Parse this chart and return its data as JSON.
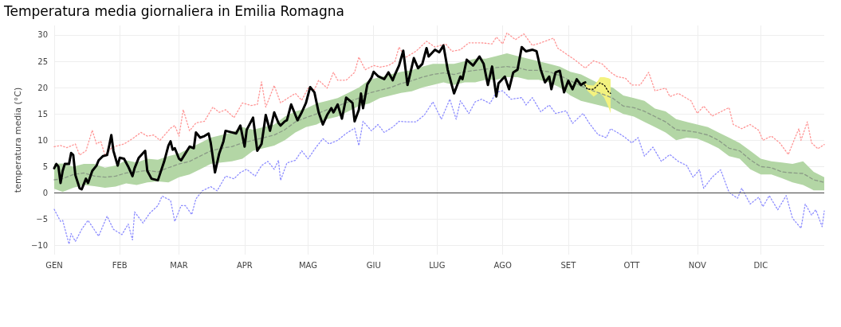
{
  "chart_data": {
    "type": "line",
    "title": "Temperatura media giornaliera in Emilia Romagna",
    "ylabel": "temperatura media (°C)",
    "xlim": [
      "--01-01",
      "--12-31"
    ],
    "ylim": [
      -11.7,
      31.8
    ],
    "xticks": [
      {
        "value": "--01-01",
        "label": "GEN"
      },
      {
        "value": "--02-01",
        "label": "FEB"
      },
      {
        "value": "--03-01",
        "label": "MAR"
      },
      {
        "value": "--04-01",
        "label": "APR"
      },
      {
        "value": "--05-01",
        "label": "MAG"
      },
      {
        "value": "--06-01",
        "label": "GIU"
      },
      {
        "value": "--07-01",
        "label": "LUG"
      },
      {
        "value": "--08-01",
        "label": "AGO"
      },
      {
        "value": "--09-01",
        "label": "SET"
      },
      {
        "value": "--10-01",
        "label": "OTT"
      },
      {
        "value": "--11-01",
        "label": "NOV"
      },
      {
        "value": "--12-01",
        "label": "DIC"
      }
    ],
    "yticks": [
      {
        "value": -10,
        "label": "−10"
      },
      {
        "value": -5,
        "label": "−5"
      },
      0,
      5,
      10,
      15,
      20,
      25,
      30
    ],
    "grid": true,
    "marker": "none",
    "ref_lines": [
      {
        "axis": "y",
        "value": 0,
        "color": "#444444"
      }
    ],
    "series": [
      {
        "color": "#b3d6a5",
        "x": [
          "--01-01",
          "--01-05",
          "--01-10",
          "--01-15",
          "--01-20",
          "--01-25",
          "--01-30",
          "--02-04",
          "--02-09",
          "--02-14",
          "--02-19",
          "--02-24",
          "--03-01",
          "--03-06",
          "--03-11",
          "--03-16",
          "--03-21",
          "--03-26",
          "--03-31",
          "--04-05",
          "--04-10",
          "--04-15",
          "--04-20",
          "--04-25",
          "--04-30",
          "--05-05",
          "--05-10",
          "--05-15",
          "--05-20",
          "--05-25",
          "--05-30",
          "--06-04",
          "--06-09",
          "--06-14",
          "--06-19",
          "--06-24",
          "--06-29",
          "--07-04",
          "--07-09",
          "--07-14",
          "--07-19",
          "--07-24",
          "--07-29",
          "--08-03",
          "--08-08",
          "--08-13",
          "--08-18",
          "--08-23",
          "--08-28",
          "--09-02",
          "--09-07",
          "--09-12",
          "--09-17",
          "--09-22",
          "--09-27",
          "--10-02",
          "--10-07",
          "--10-12",
          "--10-17",
          "--10-22",
          "--10-27",
          "--11-01",
          "--11-06",
          "--11-11",
          "--11-16",
          "--11-21",
          "--11-26",
          "--12-01",
          "--12-06",
          "--12-11",
          "--12-16",
          "--12-21",
          "--12-26",
          "--12-31"
        ],
        "lower": [
          0.8,
          0.2,
          1.0,
          1.5,
          1.3,
          1.0,
          1.2,
          1.8,
          1.5,
          2.0,
          2.2,
          2.0,
          3.0,
          3.5,
          4.5,
          5.5,
          5.8,
          6.0,
          6.5,
          8.0,
          8.5,
          9.0,
          10.0,
          11.5,
          12.5,
          13.0,
          14.0,
          14.5,
          15.5,
          16.5,
          17.0,
          18.0,
          18.5,
          19.0,
          19.3,
          20,
          20.5,
          21,
          20.5,
          21,
          21,
          21.5,
          21.5,
          22,
          22,
          21.5,
          21.5,
          21,
          20,
          18.5,
          17.5,
          17,
          16.5,
          16,
          15,
          14.5,
          13.5,
          12.5,
          11.5,
          10,
          10.5,
          10.3,
          9.5,
          8.5,
          7.0,
          6.5,
          4.5,
          3.5,
          3.5,
          2.8,
          2.0,
          1.5,
          0.5,
          0.5
        ],
        "upper": [
          5.5,
          5.6,
          5.0,
          5.5,
          5.5,
          4.8,
          5.2,
          6.2,
          5.8,
          6.5,
          6.3,
          7.0,
          7.5,
          8.5,
          9.5,
          10.5,
          11.0,
          11.5,
          12.5,
          12.0,
          12.5,
          13.0,
          14.5,
          15.5,
          16.0,
          17.0,
          17.5,
          18.0,
          19.0,
          20.0,
          21.5,
          22.0,
          22.5,
          23.0,
          23.3,
          24,
          24.5,
          24.5,
          24.5,
          25,
          25.5,
          25.5,
          26,
          26.5,
          26,
          25.5,
          25,
          24.5,
          24,
          23,
          22.5,
          21.5,
          20.5,
          20,
          18.5,
          18,
          17.5,
          16,
          15.5,
          14,
          13.5,
          13,
          12.5,
          11.5,
          10.5,
          9.5,
          8.0,
          6.5,
          6.0,
          5.8,
          5.5,
          6,
          4,
          3
        ],
        "values": [
          null,
          null,
          null,
          null,
          null,
          null,
          null,
          null,
          null,
          null,
          null,
          null,
          null,
          null,
          null,
          null,
          null,
          null,
          null,
          null,
          null,
          null,
          null,
          null,
          null,
          null,
          null,
          null,
          null,
          null,
          null,
          null,
          null,
          null,
          null,
          null,
          null,
          null,
          null,
          null,
          null,
          null,
          null,
          null,
          null,
          null,
          null,
          null,
          null,
          null,
          null,
          null,
          null,
          null,
          null,
          null,
          null,
          null,
          null,
          null,
          null,
          null,
          null,
          null,
          null,
          null,
          null,
          null,
          null,
          null,
          null,
          null,
          null,
          null
        ]
      },
      {
        "color": "#8a9a86",
        "line_style": "dashed",
        "x": [
          "--01-01",
          "--01-05",
          "--01-10",
          "--01-15",
          "--01-20",
          "--01-25",
          "--01-30",
          "--02-04",
          "--02-09",
          "--02-14",
          "--02-19",
          "--02-24",
          "--03-01",
          "--03-06",
          "--03-11",
          "--03-16",
          "--03-21",
          "--03-26",
          "--03-31",
          "--04-05",
          "--04-10",
          "--04-15",
          "--04-20",
          "--04-25",
          "--04-30",
          "--05-05",
          "--05-10",
          "--05-15",
          "--05-20",
          "--05-25",
          "--05-30",
          "--06-04",
          "--06-09",
          "--06-14",
          "--06-19",
          "--06-24",
          "--06-29",
          "--07-04",
          "--07-09",
          "--07-14",
          "--07-19",
          "--07-24",
          "--07-29",
          "--08-03",
          "--08-08",
          "--08-13",
          "--08-18",
          "--08-23",
          "--08-28",
          "--09-02",
          "--09-07",
          "--09-12",
          "--09-17",
          "--09-22",
          "--09-27",
          "--10-02",
          "--10-07",
          "--10-12",
          "--10-17",
          "--10-22",
          "--10-27",
          "--11-01",
          "--11-06",
          "--11-11",
          "--11-16",
          "--11-21",
          "--11-26",
          "--12-01",
          "--12-06",
          "--12-11",
          "--12-16",
          "--12-21",
          "--12-26",
          "--12-31"
        ],
        "values": [
          2.5,
          2.7,
          3.5,
          3.8,
          3.2,
          3.0,
          3.2,
          3.8,
          4.0,
          4.3,
          4.0,
          4.8,
          5.5,
          6.0,
          7.0,
          8.0,
          8.5,
          8.8,
          9.5,
          10.0,
          10.5,
          11.0,
          12.0,
          13.5,
          14.3,
          15.0,
          15.8,
          16.5,
          17.3,
          18.0,
          19.0,
          19.5,
          20.0,
          20.8,
          21.3,
          22,
          22.5,
          22.8,
          22.5,
          23,
          23.3,
          23.5,
          23.8,
          24,
          23.8,
          23.3,
          23.3,
          23,
          22.3,
          21.3,
          20.3,
          19.5,
          18.8,
          18,
          16.5,
          16.2,
          15.5,
          14.5,
          13.5,
          12,
          11.8,
          11.5,
          11.0,
          10,
          8.5,
          8.0,
          6.3,
          5.0,
          4.8,
          4.0,
          3.8,
          3.7,
          2.5,
          2.0
        ]
      },
      {
        "color": "#ff9494",
        "line_style": "dotted",
        "x": [
          "--01-01",
          "--01-04",
          "--01-07",
          "--01-11",
          "--01-13",
          "--01-16",
          "--01-19",
          "--01-21",
          "--01-23",
          "--01-25",
          "--01-28",
          "--01-31",
          "--02-03",
          "--02-07",
          "--02-11",
          "--02-14",
          "--02-17",
          "--02-20",
          "--02-25",
          "--02-27",
          "--03-01",
          "--03-03",
          "--03-06",
          "--03-09",
          "--03-13",
          "--03-17",
          "--03-20",
          "--03-23",
          "--03-27",
          "--03-31",
          "--04-04",
          "--04-07",
          "--04-09",
          "--04-11",
          "--04-15",
          "--04-18",
          "--04-21",
          "--04-25",
          "--04-28",
          "--05-01",
          "--05-04",
          "--05-06",
          "--05-10",
          "--05-13",
          "--05-15",
          "--05-19",
          "--05-23",
          "--05-25",
          "--05-28",
          "--06-01",
          "--06-04",
          "--06-08",
          "--06-11",
          "--06-13",
          "--06-16",
          "--06-21",
          "--06-26",
          "--06-30",
          "--07-05",
          "--07-08",
          "--07-12",
          "--07-16",
          "--07-22",
          "--07-27",
          "--07-29",
          "--08-01",
          "--08-03",
          "--08-07",
          "--08-11",
          "--08-15",
          "--08-19",
          "--08-25",
          "--08-27",
          "--08-31",
          "--09-04",
          "--09-09",
          "--09-13",
          "--09-17",
          "--09-21",
          "--09-24",
          "--09-28",
          "--10-01",
          "--10-05",
          "--10-09",
          "--10-12",
          "--10-17",
          "--10-19",
          "--10-23",
          "--10-29",
          "--11-01",
          "--11-04",
          "--11-08",
          "--11-12",
          "--11-16",
          "--11-18",
          "--11-22",
          "--11-26",
          "--11-30",
          "--12-02",
          "--12-06",
          "--12-10",
          "--12-14",
          "--12-17",
          "--12-19",
          "--12-20",
          "--12-23",
          "--12-25",
          "--12-28",
          "--12-31"
        ],
        "values": [
          8.8,
          9.0,
          8.6,
          9.3,
          7.2,
          8.0,
          11.9,
          9.3,
          9.8,
          7.2,
          8.5,
          9.0,
          9.3,
          10.3,
          11.5,
          10.8,
          11.0,
          10.0,
          12.3,
          12.8,
          10.8,
          15.8,
          11.8,
          13.3,
          13.6,
          16.3,
          15.3,
          15.8,
          14.3,
          17.1,
          16.6,
          16.8,
          21.1,
          16.3,
          20.4,
          17.1,
          17.9,
          18.9,
          17.6,
          19.9,
          19.6,
          21.4,
          19.9,
          22.9,
          21.4,
          21.4,
          22.9,
          25.8,
          23.4,
          24.2,
          23.9,
          24.2,
          24.9,
          27.7,
          25.7,
          26.9,
          28.8,
          27.7,
          28.3,
          26.9,
          27.2,
          28.5,
          28.5,
          28.3,
          29.6,
          28.3,
          30.4,
          29.1,
          30.2,
          28.0,
          28.5,
          29.4,
          27.5,
          26.4,
          25.3,
          23.7,
          25.1,
          24.5,
          22.9,
          22.1,
          21.8,
          20.5,
          20.5,
          22.9,
          19.4,
          19.9,
          18.3,
          18.9,
          17.5,
          15.1,
          16.5,
          14.6,
          15.4,
          16.2,
          13.0,
          12.2,
          13.0,
          11.9,
          10.0,
          10.8,
          9.5,
          7.3,
          10.3,
          12.2,
          10.0,
          13.5,
          9.5,
          8.4,
          9.2
        ]
      },
      {
        "color": "#8c8cff",
        "line_style": "dotted",
        "x": [
          "--01-01",
          "--01-04",
          "--01-05",
          "--01-08",
          "--01-09",
          "--01-11",
          "--01-14",
          "--01-17",
          "--01-19",
          "--01-22",
          "--01-26",
          "--01-29",
          "--02-02",
          "--02-05",
          "--02-07",
          "--02-08",
          "--02-12",
          "--02-15",
          "--02-19",
          "--02-21",
          "--02-25",
          "--02-27",
          "--03-02",
          "--03-04",
          "--03-07",
          "--03-09",
          "--03-12",
          "--03-16",
          "--03-19",
          "--03-23",
          "--03-27",
          "--03-30",
          "--04-02",
          "--04-06",
          "--04-09",
          "--04-12",
          "--04-15",
          "--04-17",
          "--04-18",
          "--04-21",
          "--04-25",
          "--04-28",
          "--05-01",
          "--05-05",
          "--05-08",
          "--05-11",
          "--05-15",
          "--05-19",
          "--05-23",
          "--05-25",
          "--05-27",
          "--05-31",
          "--06-03",
          "--06-06",
          "--06-10",
          "--06-13",
          "--06-17",
          "--06-21",
          "--06-25",
          "--06-29",
          "--07-03",
          "--07-07",
          "--07-10",
          "--07-12",
          "--07-16",
          "--07-19",
          "--07-22",
          "--07-26",
          "--07-29",
          "--08-01",
          "--08-05",
          "--08-10",
          "--08-12",
          "--08-15",
          "--08-19",
          "--08-23",
          "--08-26",
          "--08-31",
          "--09-03",
          "--09-08",
          "--09-11",
          "--09-15",
          "--09-19",
          "--09-21",
          "--09-25",
          "--09-28",
          "--10-01",
          "--10-04",
          "--10-07",
          "--10-11",
          "--10-15",
          "--10-19",
          "--10-23",
          "--10-27",
          "--10-30",
          "--11-02",
          "--11-04",
          "--11-08",
          "--11-12",
          "--11-16",
          "--11-20",
          "--11-22",
          "--11-26",
          "--11-30",
          "--12-02",
          "--12-05",
          "--12-09",
          "--12-13",
          "--12-16",
          "--12-20",
          "--12-22",
          "--12-25",
          "--12-27",
          "--12-30",
          "--12-31"
        ],
        "values": [
          -3.1,
          -5.4,
          -5.2,
          -9.7,
          -7.7,
          -9.2,
          -6.9,
          -5.2,
          -6.4,
          -8.2,
          -4.4,
          -6.9,
          -7.9,
          -5.9,
          -8.9,
          -3.6,
          -5.7,
          -3.9,
          -2.4,
          -0.6,
          -1.4,
          -5.4,
          -2.4,
          -2.4,
          -4.1,
          -1.1,
          0.4,
          1.2,
          0.4,
          3.2,
          2.7,
          3.9,
          4.5,
          3.2,
          5.2,
          6.0,
          4.5,
          6.2,
          2.4,
          5.7,
          6.2,
          8.0,
          6.5,
          8.8,
          10.3,
          9.3,
          10.0,
          11.3,
          12.3,
          9.0,
          13.6,
          11.8,
          13.0,
          11.5,
          12.5,
          13.6,
          13.5,
          13.5,
          14.8,
          17.3,
          14.0,
          17.8,
          14.0,
          17.5,
          15.1,
          17.3,
          17.8,
          17.0,
          19.1,
          19.4,
          17.8,
          18.1,
          16.7,
          18.1,
          15.4,
          16.7,
          15.1,
          15.6,
          13.2,
          15.1,
          13.2,
          11.1,
          10.5,
          12.2,
          11.3,
          10.5,
          9.5,
          10.5,
          7.0,
          8.7,
          6.0,
          7.3,
          6.0,
          5.2,
          3.0,
          4.4,
          0.9,
          3.0,
          4.4,
          0.1,
          -1.0,
          0.9,
          -2.1,
          -0.8,
          -2.6,
          -0.5,
          -3.2,
          -0.5,
          -4.8,
          -6.7,
          -2.1,
          -4.2,
          -3.2,
          -6.4,
          -3.4
        ]
      },
      {
        "color": "#000000",
        "line_style": "solid",
        "x": [
          "--01-01",
          "--01-02",
          "--01-03",
          "--01-04",
          "--01-05",
          "--01-06",
          "--01-08",
          "--01-09",
          "--01-10",
          "--01-11",
          "--01-13",
          "--01-14",
          "--01-16",
          "--01-17",
          "--01-19",
          "--01-21",
          "--01-22",
          "--01-24",
          "--01-26",
          "--01-27",
          "--01-28",
          "--01-29",
          "--01-31",
          "--02-01",
          "--02-03",
          "--02-05",
          "--02-07",
          "--02-08",
          "--02-10",
          "--02-13",
          "--02-14",
          "--02-16",
          "--02-19",
          "--02-22",
          "--02-24",
          "--02-25",
          "--02-26",
          "--02-27",
          "--03-01",
          "--03-02",
          "--03-04",
          "--03-06",
          "--03-08",
          "--03-09",
          "--03-11",
          "--03-13",
          "--03-15",
          "--03-16",
          "--03-18",
          "--03-20",
          "--03-22",
          "--03-23",
          "--03-26",
          "--03-28",
          "--03-30",
          "--04-01",
          "--04-02",
          "--04-05",
          "--04-07",
          "--04-09",
          "--04-11",
          "--04-13",
          "--04-15",
          "--04-17",
          "--04-18",
          "--04-20",
          "--04-21",
          "--04-23",
          "--04-26",
          "--04-28",
          "--04-30",
          "--05-02",
          "--05-04",
          "--05-06",
          "--05-08",
          "--05-10",
          "--05-12",
          "--05-13",
          "--05-15",
          "--05-17",
          "--05-19",
          "--05-22",
          "--05-23",
          "--05-25",
          "--05-26",
          "--05-27",
          "--05-29",
          "--05-31",
          "--06-01",
          "--06-03",
          "--06-06",
          "--06-08",
          "--06-10",
          "--06-11",
          "--06-13",
          "--06-15",
          "--06-17",
          "--06-20",
          "--06-22",
          "--06-24",
          "--06-26",
          "--06-27",
          "--06-30",
          "--07-02",
          "--07-04",
          "--07-06",
          "--07-09",
          "--07-12",
          "--07-13",
          "--07-15",
          "--07-18",
          "--07-21",
          "--07-23",
          "--07-25",
          "--07-27",
          "--07-29",
          "--07-30",
          "--08-02",
          "--08-04",
          "--08-06",
          "--08-08",
          "--08-10",
          "--08-12",
          "--08-15",
          "--08-17",
          "--08-19",
          "--08-21",
          "--08-23",
          "--08-24",
          "--08-26",
          "--08-28",
          "--08-30",
          "--09-01",
          "--09-03",
          "--09-05",
          "--09-07",
          "--09-09"
        ],
        "values": [
          4.7,
          5.5,
          5.0,
          1.9,
          4.2,
          5.5,
          5.5,
          7.6,
          7.2,
          3.4,
          0.9,
          0.7,
          2.7,
          1.9,
          4.2,
          5.2,
          6.2,
          7.0,
          7.2,
          9.0,
          11.0,
          8.0,
          5.2,
          6.7,
          6.5,
          5.0,
          3.2,
          4.7,
          6.7,
          8.0,
          4.2,
          2.7,
          2.4,
          6.0,
          9.0,
          9.8,
          8.2,
          8.5,
          6.5,
          6.2,
          7.5,
          8.8,
          8.5,
          11.5,
          10.5,
          10.8,
          11.3,
          9.5,
          3.9,
          7.5,
          9.8,
          11.8,
          11.5,
          11.3,
          12.8,
          8.8,
          12.0,
          14.3,
          8.0,
          9.3,
          14.8,
          11.8,
          15.3,
          13.3,
          12.8,
          13.6,
          13.8,
          16.8,
          13.8,
          15.3,
          17.1,
          20.1,
          19.1,
          15.3,
          13.0,
          14.8,
          16.1,
          15.3,
          16.8,
          14.1,
          18.1,
          17.1,
          13.6,
          15.8,
          18.9,
          16.1,
          20.6,
          21.9,
          23.0,
          22.2,
          21.6,
          22.9,
          21.4,
          22.4,
          24.2,
          27.0,
          20.5,
          25.6,
          23.7,
          24.5,
          27.5,
          25.9,
          27.2,
          26.7,
          28.0,
          23.4,
          18.9,
          22.1,
          21.6,
          25.3,
          24.2,
          25.9,
          24.5,
          20.5,
          24.0,
          18.3,
          20.8,
          22.1,
          19.7,
          22.9,
          23.4,
          27.7,
          26.9,
          27.2,
          26.9,
          23.4,
          21.0,
          22.1,
          19.7,
          22.9,
          23.2,
          19.1,
          21.3,
          19.7,
          21.6,
          20.5,
          21.0
        ]
      },
      {
        "color": "#000000",
        "line_style": "dotted",
        "x": [
          "--09-08",
          "--09-10",
          "--09-13",
          "--09-15",
          "--09-16",
          "--09-18",
          "--09-20",
          "--09-21"
        ],
        "values": [
          21.0,
          19.7,
          19.7,
          20.5,
          20.9,
          20.5,
          19.2,
          18.9
        ]
      },
      {
        "color": "#f3f27f",
        "x": [
          "--09-08",
          "--09-10",
          "--09-13",
          "--09-15",
          "--09-16",
          "--09-18",
          "--09-20",
          "--09-21"
        ],
        "values": [
          null,
          null,
          null,
          null,
          null,
          null,
          null,
          null
        ],
        "lower": [
          21.3,
          19.4,
          18.3,
          18.9,
          19.0,
          18.1,
          16.3,
          15.1
        ],
        "upper": [
          21.3,
          20.5,
          20.4,
          21.3,
          22.0,
          22.0,
          21.8,
          21.6
        ]
      }
    ]
  }
}
